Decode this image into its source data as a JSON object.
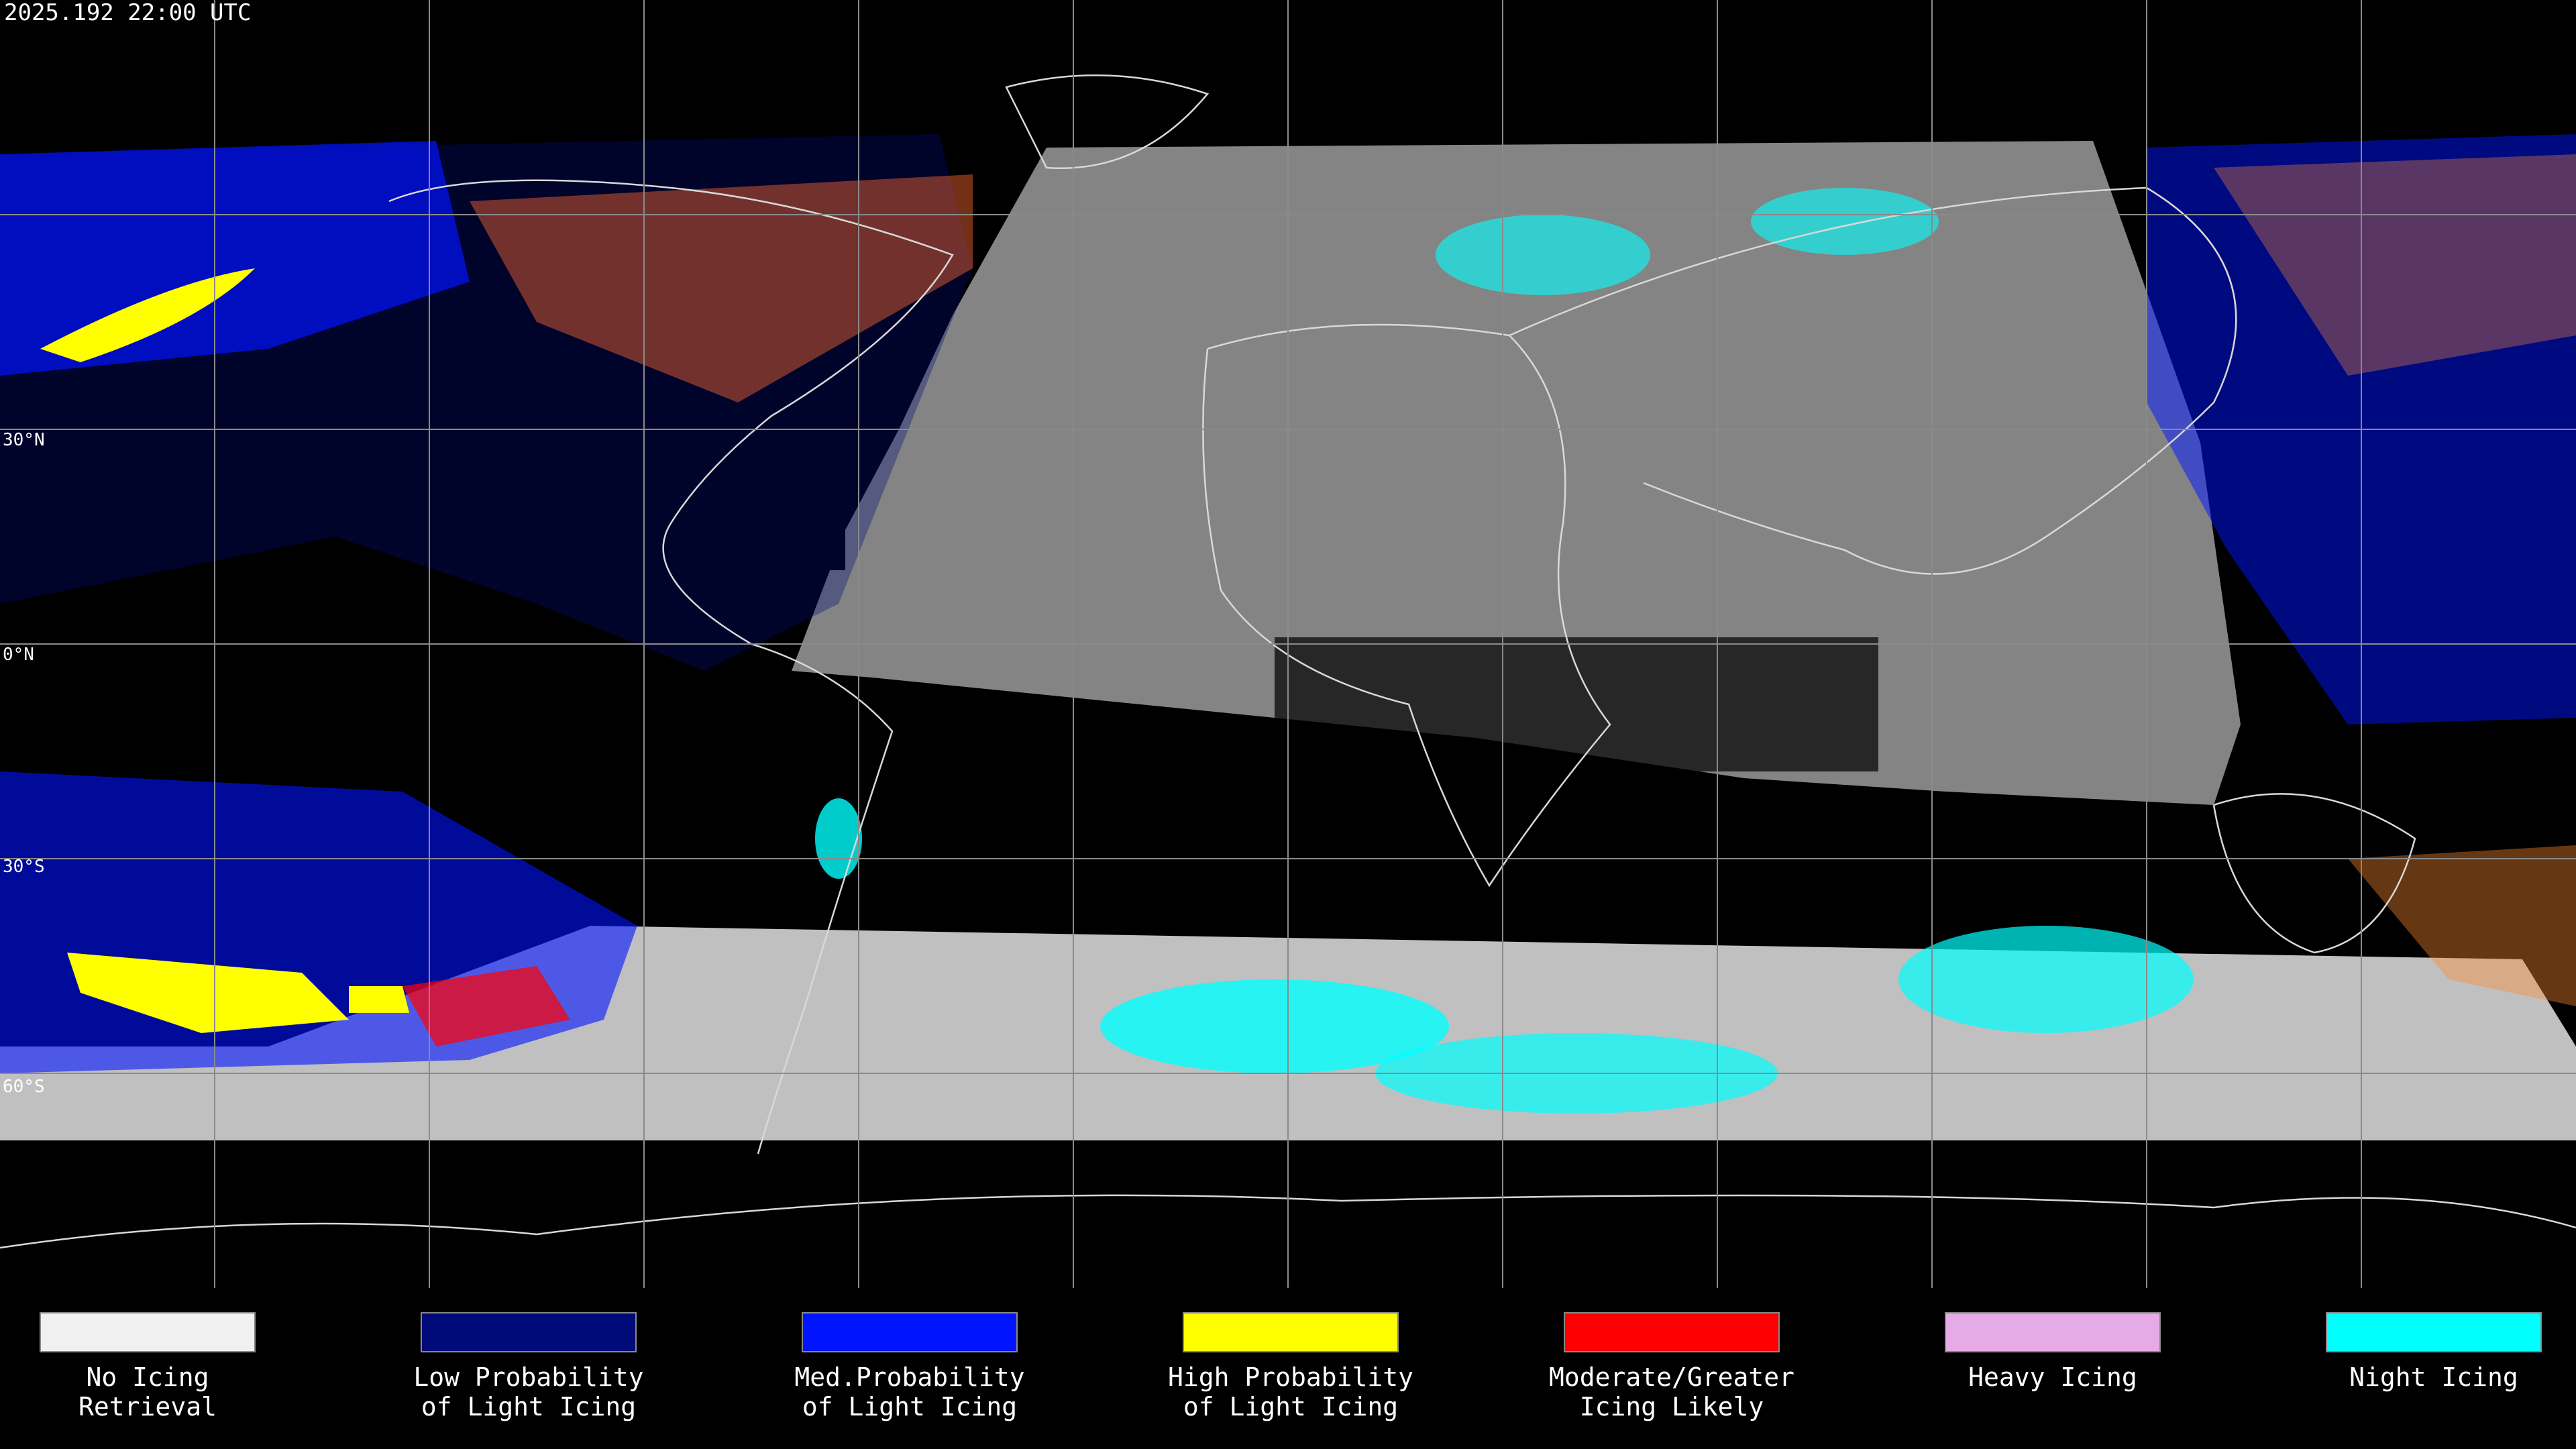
{
  "timestamp": "2025.192 22:00 UTC",
  "latitude_labels": [
    "30°N",
    "0°N",
    "30°S",
    "60°S"
  ],
  "legend": [
    {
      "lines": [
        "No Icing",
        "Retrieval"
      ],
      "color": "#f0f0f0"
    },
    {
      "lines": [
        "Low Probability",
        "of Light Icing"
      ],
      "color": "#000a78"
    },
    {
      "lines": [
        "Med.Probability",
        "of Light Icing"
      ],
      "color": "#0014ff"
    },
    {
      "lines": [
        "High Probability",
        "of Light Icing"
      ],
      "color": "#ffff00"
    },
    {
      "lines": [
        "Moderate/Greater",
        "Icing Likely"
      ],
      "color": "#ff0000"
    },
    {
      "lines": [
        "Heavy Icing"
      ],
      "color": "#e6aae6"
    },
    {
      "lines": [
        "Night Icing"
      ],
      "color": "#00ffff"
    }
  ]
}
